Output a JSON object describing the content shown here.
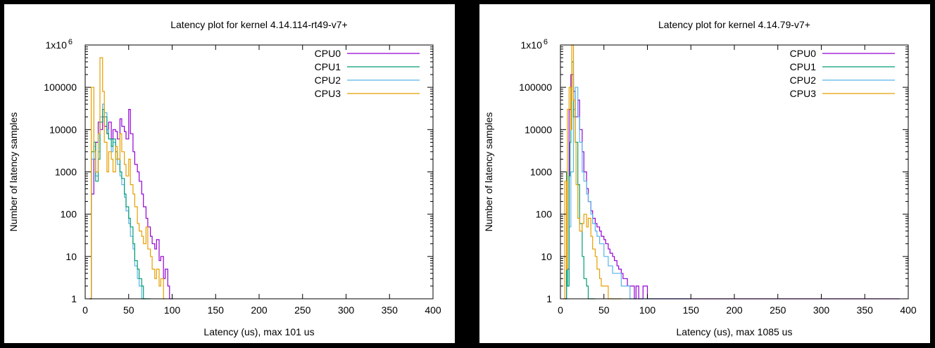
{
  "chart_data": [
    {
      "type": "line",
      "title": "Latency plot for kernel 4.14.114-rt49-v7+",
      "xlabel": "Latency (us), max 101 us",
      "ylabel": "Number of latency samples",
      "xlim": [
        0,
        400
      ],
      "ylim": [
        1,
        1000000
      ],
      "yscale": "log",
      "xticks": [
        "0",
        "50",
        "100",
        "150",
        "200",
        "250",
        "300",
        "350",
        "400"
      ],
      "yticks": [
        {
          "value": 1,
          "label": "1"
        },
        {
          "value": 10,
          "label": "10"
        },
        {
          "value": 100,
          "label": "100"
        },
        {
          "value": 1000,
          "label": "1000"
        },
        {
          "value": 10000,
          "label": "10000"
        },
        {
          "value": 100000,
          "label": "100000"
        },
        {
          "value": 1000000,
          "label": "1x10",
          "exp": "6"
        }
      ],
      "grid": false,
      "legend": "top-right",
      "series": [
        {
          "name": "CPU0",
          "color": "#9400d3",
          "x": [
            5,
            7,
            10,
            12,
            15,
            17,
            20,
            22,
            25,
            27,
            30,
            32,
            35,
            37,
            40,
            42,
            45,
            47,
            50,
            52,
            55,
            57,
            60,
            62,
            65,
            67,
            70,
            72,
            75,
            77,
            80,
            82,
            85,
            87,
            90,
            92,
            95,
            97,
            100,
            101
          ],
          "y": [
            1,
            300,
            2000,
            5000,
            15000,
            10000,
            20000,
            12000,
            8000,
            15000,
            6000,
            10000,
            9000,
            6000,
            18000,
            12000,
            9000,
            6000,
            30000,
            8000,
            3000,
            1500,
            1000,
            600,
            300,
            150,
            80,
            50,
            30,
            20,
            15,
            25,
            8,
            10,
            3,
            5,
            2,
            1,
            1,
            1
          ]
        },
        {
          "name": "CPU1",
          "color": "#009e73",
          "x": [
            5,
            7,
            10,
            12,
            15,
            17,
            20,
            22,
            25,
            27,
            30,
            32,
            35,
            37,
            40,
            42,
            45,
            47,
            50,
            52,
            55,
            57,
            60,
            62,
            65,
            67,
            70,
            72,
            75
          ],
          "y": [
            1,
            3000,
            5000,
            600,
            2000,
            15000,
            30000,
            20000,
            8000,
            6000,
            4000,
            6000,
            3000,
            2000,
            1000,
            700,
            300,
            150,
            80,
            50,
            20,
            8,
            5,
            3,
            2,
            1,
            1,
            1,
            1
          ]
        },
        {
          "name": "CPU2",
          "color": "#56b4e9",
          "x": [
            5,
            7,
            10,
            12,
            15,
            17,
            20,
            22,
            25,
            27,
            30,
            32,
            35,
            37,
            40,
            42,
            45,
            47,
            50,
            52,
            55,
            57,
            60,
            62,
            65,
            67,
            70
          ],
          "y": [
            1,
            2000,
            4000,
            800,
            3000,
            20000,
            40000,
            25000,
            10000,
            6000,
            3000,
            5000,
            2000,
            1500,
            800,
            500,
            250,
            120,
            60,
            30,
            15,
            6,
            3,
            2,
            1,
            1,
            1
          ]
        },
        {
          "name": "CPU3",
          "color": "#e69f00",
          "x": [
            5,
            7,
            10,
            12,
            15,
            17,
            20,
            22,
            25,
            27,
            30,
            32,
            35,
            37,
            40,
            42,
            45,
            47,
            50,
            52,
            55,
            57,
            60,
            62,
            65,
            67,
            70,
            72,
            75,
            77,
            80,
            82,
            85,
            87,
            90,
            92
          ],
          "y": [
            1,
            100000,
            3000,
            1000,
            8000,
            500000,
            80000,
            5000,
            1000,
            3000,
            2000,
            1000,
            4000,
            2000,
            8000,
            3000,
            1500,
            800,
            2000,
            500,
            300,
            150,
            60,
            40,
            30,
            20,
            50,
            15,
            10,
            5,
            3,
            5,
            2,
            3,
            1,
            1
          ]
        }
      ]
    },
    {
      "type": "line",
      "title": "Latency plot for kernel 4.14.79-v7+",
      "xlabel": "Latency (us), max 1085 us",
      "ylabel": "Number of latency samples",
      "xlim": [
        0,
        400
      ],
      "ylim": [
        1,
        1000000
      ],
      "yscale": "log",
      "xticks": [
        "0",
        "50",
        "100",
        "150",
        "200",
        "250",
        "300",
        "350",
        "400"
      ],
      "yticks": [
        {
          "value": 1,
          "label": "1"
        },
        {
          "value": 10,
          "label": "10"
        },
        {
          "value": 100,
          "label": "100"
        },
        {
          "value": 1000,
          "label": "1000"
        },
        {
          "value": 10000,
          "label": "10000"
        },
        {
          "value": 100000,
          "label": "100000"
        },
        {
          "value": 1000000,
          "label": "1x10",
          "exp": "6"
        }
      ],
      "grid": false,
      "legend": "top-right",
      "series": [
        {
          "name": "CPU0",
          "color": "#9400d3",
          "x": [
            5,
            7,
            10,
            12,
            15,
            17,
            20,
            22,
            25,
            27,
            30,
            32,
            35,
            37,
            40,
            42,
            45,
            47,
            50,
            52,
            55,
            57,
            60,
            62,
            65,
            67,
            70,
            72,
            75,
            77,
            80,
            82,
            85,
            87,
            90,
            92,
            95,
            100,
            105,
            110,
            115,
            120,
            125,
            130,
            135,
            140,
            145,
            150,
            190,
            235,
            245,
            255,
            275,
            295,
            315,
            360,
            375,
            385,
            390
          ],
          "y": [
            1,
            5,
            30000,
            200000,
            80000,
            20000,
            50000,
            10000,
            3000,
            1000,
            400,
            200,
            120,
            80,
            60,
            50,
            40,
            30,
            25,
            20,
            15,
            12,
            10,
            8,
            6,
            5,
            4,
            3,
            3,
            2,
            2,
            2,
            1,
            2,
            1,
            1,
            2,
            1,
            1,
            1,
            1,
            1,
            1,
            1,
            1,
            1,
            1,
            1,
            1,
            1,
            1,
            1,
            1,
            1,
            1,
            1,
            1,
            1,
            1
          ]
        },
        {
          "name": "CPU1",
          "color": "#009e73",
          "x": [
            5,
            7,
            8,
            10,
            11,
            12,
            13,
            15,
            17,
            20,
            22,
            25,
            27,
            30,
            32,
            35,
            37,
            40
          ],
          "y": [
            1,
            1000,
            2,
            800,
            5000,
            100000,
            400000,
            20000,
            5000,
            500,
            60,
            10,
            3,
            2,
            1,
            1,
            1,
            1
          ]
        },
        {
          "name": "CPU2",
          "color": "#56b4e9",
          "x": [
            5,
            7,
            10,
            12,
            15,
            17,
            20,
            22,
            25,
            27,
            30,
            32,
            35,
            37,
            40,
            42,
            45,
            50,
            55,
            60,
            70,
            80,
            95,
            110,
            120,
            150
          ],
          "y": [
            1,
            2,
            50,
            1000,
            30000,
            100000,
            20000,
            5000,
            1000,
            600,
            300,
            200,
            100,
            60,
            40,
            30,
            20,
            10,
            6,
            4,
            2,
            1,
            1,
            1,
            1,
            1
          ]
        },
        {
          "name": "CPU3",
          "color": "#e69f00",
          "x": [
            3,
            5,
            7,
            8,
            10,
            12,
            13,
            15,
            17,
            18,
            20,
            22,
            25,
            27,
            30,
            32,
            35,
            37,
            40,
            42,
            45,
            47,
            50,
            55,
            60,
            65,
            70
          ],
          "y": [
            1,
            600,
            5,
            30000,
            100000,
            10000,
            1000000,
            50000,
            5000,
            500,
            80,
            40,
            60,
            100,
            50,
            80,
            30,
            15,
            10,
            5,
            3,
            2,
            2,
            1,
            1,
            1,
            1
          ]
        }
      ]
    }
  ]
}
